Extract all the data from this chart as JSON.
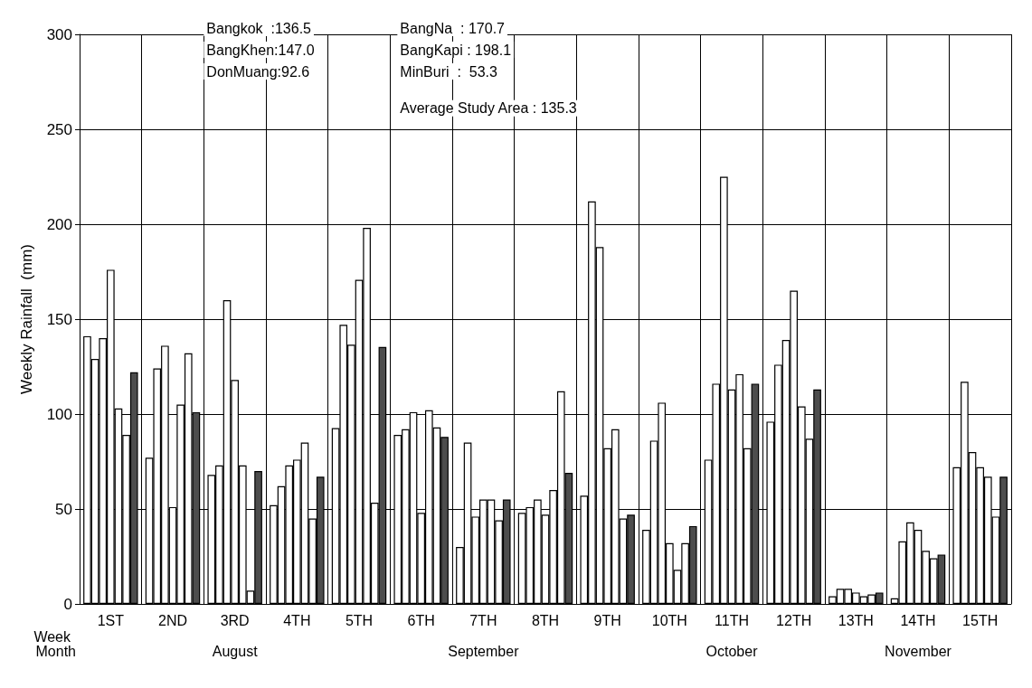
{
  "chart_data": {
    "type": "bar",
    "ylabel": "Weekly Rainfall  (mm)",
    "xlabel": "Week",
    "categories": [
      "1ST",
      "2ND",
      "3RD",
      "4TH",
      "5TH",
      "6TH",
      "7TH",
      "8TH",
      "9TH",
      "10TH",
      "11TH",
      "12TH",
      "13TH",
      "14TH",
      "15TH"
    ],
    "series": [
      {
        "color": "#ffffff",
        "values": [
          141,
          77,
          68,
          52,
          92.6,
          89,
          30,
          48,
          57,
          39,
          76,
          96,
          4,
          3,
          72
        ]
      },
      {
        "color": "#ffffff",
        "values": [
          129,
          124,
          73,
          62,
          147.0,
          92,
          85,
          51,
          212,
          86,
          116,
          126,
          8,
          33,
          117
        ]
      },
      {
        "color": "#ffffff",
        "values": [
          140,
          136,
          160,
          73,
          136.5,
          101,
          46,
          55,
          188,
          106,
          225,
          139,
          8,
          43,
          80
        ]
      },
      {
        "color": "#ffffff",
        "values": [
          176,
          51,
          118,
          76,
          170.7,
          48,
          55,
          47,
          82,
          32,
          113,
          165,
          6,
          39,
          72
        ]
      },
      {
        "color": "#ffffff",
        "values": [
          103,
          105,
          73,
          85,
          198.1,
          102,
          55,
          60,
          92,
          18,
          121,
          104,
          4,
          28,
          67
        ]
      },
      {
        "color": "#ffffff",
        "values": [
          89,
          132,
          7,
          45,
          53.3,
          93,
          44,
          112,
          45,
          32,
          82,
          87,
          5,
          24,
          46
        ]
      },
      {
        "color": "#4d4d4d",
        "values": [
          122,
          101,
          70,
          67,
          135.3,
          88,
          55,
          69,
          47,
          41,
          116,
          113,
          6,
          26,
          67
        ]
      }
    ],
    "ylim": [
      0,
      300
    ],
    "yticks": [
      0,
      50,
      100,
      150,
      200,
      250,
      300
    ],
    "grid": true,
    "annotations": [
      "Bangkok  :136.5",
      "BangKhen:147.0",
      "DonMuang:92.6",
      "BangNa  : 170.7",
      "BangKapi : 198.1",
      "MinBuri  :  53.3",
      "Average Study Area : 135.3",
      "Month",
      "August",
      "September",
      "October",
      "November"
    ]
  }
}
